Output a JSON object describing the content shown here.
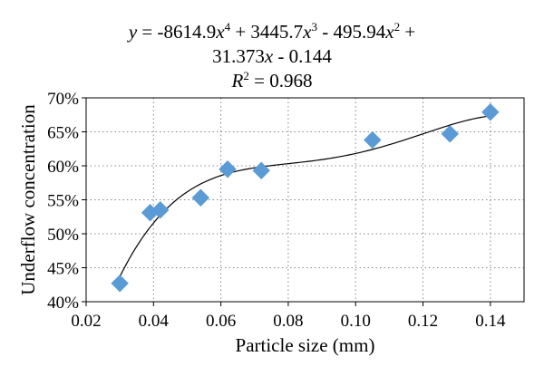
{
  "chart_data": {
    "type": "scatter",
    "title": "",
    "xlabel": "Particle size (mm)",
    "ylabel": "Underflow concentration",
    "xlim": [
      0.02,
      0.15
    ],
    "ylim": [
      0.4,
      0.7
    ],
    "x_ticks": [
      0.02,
      0.04,
      0.06,
      0.08,
      0.1,
      0.12,
      0.14
    ],
    "x_tick_labels": [
      "0.02",
      "0.04",
      "0.06",
      "0.08",
      "0.10",
      "0.12",
      "0.14"
    ],
    "y_ticks": [
      0.4,
      0.45,
      0.5,
      0.55,
      0.6,
      0.65,
      0.7
    ],
    "y_tick_labels": [
      "40%",
      "45%",
      "50%",
      "55%",
      "60%",
      "65%",
      "70%"
    ],
    "grid": "dotted",
    "marker": "diamond",
    "marker_color": "#5b9bd5",
    "curve_color": "#000000",
    "series": [
      {
        "x": [
          0.03,
          0.039,
          0.042,
          0.054,
          0.062,
          0.072,
          0.105,
          0.128,
          0.14
        ],
        "y": [
          0.427,
          0.531,
          0.535,
          0.553,
          0.595,
          0.593,
          0.638,
          0.647,
          0.679
        ]
      }
    ],
    "trendline": {
      "type": "polynomial",
      "order": 4,
      "coefficients": [
        -8614.9,
        3445.7,
        -495.94,
        31.373,
        -0.144
      ],
      "x_range": [
        0.03,
        0.14
      ]
    },
    "annotation": {
      "equation_line1": {
        "y": "y",
        "a4": " = -8614.9",
        "x4": "x",
        "p4": "4",
        "a3": " + 3445.7",
        "x3": "x",
        "p3": "3",
        "a2": " - 495.94",
        "x2": "x",
        "p2": "2",
        "tail": " +"
      },
      "equation_line2": {
        "a1": "31.373",
        "x1": "x",
        "a0": " - 0.144"
      },
      "r2_line": {
        "r": "R",
        "p": "2",
        "val": " = 0.968"
      }
    }
  }
}
